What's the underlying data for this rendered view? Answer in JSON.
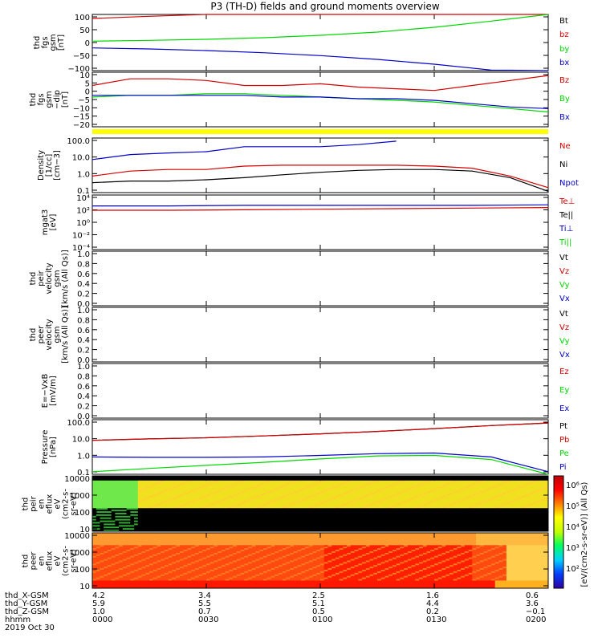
{
  "title": "P3 (TH-D) fields and ground moments overview",
  "colors": {
    "red": "#d40000",
    "green": "#00d800",
    "blue": "#0000c8",
    "black": "#000000",
    "yellow": "#ffff00"
  },
  "panels": [
    {
      "id": "fgs",
      "ylabel": "thd\nfgs\ngsm\n[nT]",
      "yticks": [
        "100",
        "50",
        "0",
        "−50",
        "−100"
      ],
      "ylim": [
        -100,
        110
      ],
      "legend": [
        {
          "text": "Bt",
          "color": "#000000"
        },
        {
          "text": "bz",
          "color": "#d40000"
        },
        {
          "text": "by",
          "color": "#00d800"
        },
        {
          "text": "bx",
          "color": "#0000c8"
        }
      ]
    },
    {
      "id": "fgs2",
      "ylabel": "thd\nfgs\ngsm\n−dip\n[nT]",
      "yticks": [
        "10",
        "5",
        "0",
        "−5",
        "−10",
        "−15",
        "−20"
      ],
      "ylim": [
        -22,
        11
      ],
      "legend": [
        {
          "text": "Bz",
          "color": "#d40000"
        },
        {
          "text": "By",
          "color": "#00d800"
        },
        {
          "text": "Bx",
          "color": "#0000c8"
        }
      ]
    },
    {
      "id": "density",
      "ylabel": "Density\n[1/cc]\n[cm−3]",
      "yticks": [
        "100.0",
        "10.0",
        "1.0",
        "0.1"
      ],
      "ylim": [
        0.1,
        200
      ],
      "legend": [
        {
          "text": "Ne",
          "color": "#d40000"
        },
        {
          "text": "Ni",
          "color": "#000000"
        },
        {
          "text": "Npot",
          "color": "#0000c8"
        }
      ]
    },
    {
      "id": "temp",
      "ylabel": "mgat3\n[eV]",
      "yticks": [
        "10^4",
        "10^2",
        "10^0",
        "10^-2",
        "10^-4"
      ],
      "ylim": [
        -5,
        5
      ],
      "legend": [
        {
          "text": "Te⊥",
          "color": "#d40000"
        },
        {
          "text": "Te||",
          "color": "#000000"
        },
        {
          "text": "Ti⊥",
          "color": "#0000c8"
        },
        {
          "text": "Ti||",
          "color": "#00d800"
        }
      ]
    },
    {
      "id": "peir_v",
      "ylabel": "thd\npeir\nvelocity\ngsm\n[km/s (All Qs)]",
      "yticks": [
        "1.0",
        "0.8",
        "0.6",
        "0.4",
        "0.2",
        "0.0"
      ],
      "ylim": [
        0,
        1
      ],
      "legend": [
        {
          "text": "Vt",
          "color": "#000000"
        },
        {
          "text": "Vz",
          "color": "#d40000"
        },
        {
          "text": "Vy",
          "color": "#00d800"
        },
        {
          "text": "Vx",
          "color": "#0000c8"
        }
      ]
    },
    {
      "id": "peer_v",
      "ylabel": "thd\npeer\nvelocity\ngsm\n[km/s (All Qs)]",
      "yticks": [
        "1.0",
        "0.8",
        "0.6",
        "0.4",
        "0.2",
        "0.0"
      ],
      "ylim": [
        0,
        1
      ],
      "legend": [
        {
          "text": "Vt",
          "color": "#000000"
        },
        {
          "text": "Vz",
          "color": "#d40000"
        },
        {
          "text": "Vy",
          "color": "#00d800"
        },
        {
          "text": "Vx",
          "color": "#0000c8"
        }
      ]
    },
    {
      "id": "efield",
      "ylabel": "E=−VxB\n[mV/m]",
      "yticks": [
        "1.0",
        "0.8",
        "0.6",
        "0.4",
        "0.2",
        "0.0"
      ],
      "ylim": [
        0,
        1
      ],
      "legend": [
        {
          "text": "Ez",
          "color": "#d40000"
        },
        {
          "text": "Ey",
          "color": "#00d800"
        },
        {
          "text": "Ex",
          "color": "#0000c8"
        }
      ]
    },
    {
      "id": "pressure",
      "ylabel": "Pressure\n[nPa]",
      "yticks": [
        "100.0",
        "10.0",
        "1.0",
        "0.1"
      ],
      "ylim": [
        0.02,
        100
      ],
      "legend": [
        {
          "text": "Pt",
          "color": "#000000"
        },
        {
          "text": "Pb",
          "color": "#d40000"
        },
        {
          "text": "Pe",
          "color": "#00d800"
        },
        {
          "text": "Pi",
          "color": "#0000c8"
        }
      ]
    },
    {
      "id": "peir_en",
      "ylabel": "thd\npeir\nen\neflux\neV\n(cm2-s-\nsr-eV)",
      "yticks": [
        "10000",
        "1000",
        "100",
        "10"
      ],
      "legend": []
    },
    {
      "id": "peer_en",
      "ylabel": "thd\npeer\nen\neflux\neV\n(cm2-s-\nsr-eV)",
      "yticks": [
        "10000",
        "1000",
        "100",
        "10"
      ],
      "legend": []
    }
  ],
  "colorbar": {
    "label": "[eV/(cm2-s-sr-eV)] (All Qs)",
    "ticks": [
      "10^6",
      "10^5",
      "10^4",
      "10^3",
      "10^2"
    ]
  },
  "xaxis": {
    "rows": [
      {
        "label": "thd_X-GSM",
        "values": [
          "4.2",
          "3.4",
          "2.5",
          "1.6",
          "0.6"
        ]
      },
      {
        "label": "thd_Y-GSM",
        "values": [
          "5.9",
          "5.5",
          "5.1",
          "4.4",
          "3.6"
        ]
      },
      {
        "label": "thd_Z-GSM",
        "values": [
          "1.0",
          "0.7",
          "0.5",
          "0.2",
          "−0.1"
        ]
      },
      {
        "label": "hhmm",
        "values": [
          "0000",
          "0030",
          "0100",
          "0130",
          "0200"
        ]
      }
    ],
    "date": "2019 Oct 30"
  },
  "chart_data": [
    {
      "type": "line",
      "panel": "fgs",
      "x": [
        0,
        15,
        30,
        45,
        60,
        75,
        90,
        105,
        120
      ],
      "series": [
        {
          "name": "bz",
          "values": [
            95,
            103,
            112,
            120,
            128,
            136,
            144,
            152,
            160
          ]
        },
        {
          "name": "by",
          "values": [
            10,
            13,
            17,
            23,
            32,
            44,
            62,
            85,
            112
          ]
        },
        {
          "name": "bx",
          "values": [
            -15,
            -19,
            -25,
            -33,
            -44,
            -58,
            -76,
            -98,
            -124
          ]
        }
      ]
    },
    {
      "type": "line",
      "panel": "fgs2",
      "x": [
        0,
        10,
        20,
        30,
        40,
        50,
        60,
        70,
        80,
        90,
        100,
        110,
        120
      ],
      "series": [
        {
          "name": "Bz",
          "values": [
            3,
            7,
            7,
            6,
            3,
            3,
            4,
            2,
            1,
            0,
            3,
            6,
            9
          ]
        },
        {
          "name": "By",
          "values": [
            -4,
            -3,
            -3,
            -2,
            -2,
            -3,
            -4,
            -5,
            -6,
            -7,
            -9,
            -11,
            -13
          ]
        },
        {
          "name": "Bx",
          "values": [
            -3,
            -3,
            -3,
            -3,
            -3,
            -4,
            -4,
            -5,
            -5,
            -6,
            -8,
            -10,
            -11
          ]
        }
      ]
    },
    {
      "type": "line",
      "panel": "density",
      "x": [
        0,
        10,
        20,
        30,
        40,
        50,
        60,
        70,
        80,
        90,
        100,
        110,
        120
      ],
      "series": [
        {
          "name": "Ne",
          "values": [
            1.0,
            2.0,
            2.5,
            2.5,
            4.0,
            4.5,
            4.5,
            4.5,
            4.5,
            4.0,
            3.0,
            1.0,
            0.2
          ]
        },
        {
          "name": "Ni",
          "values": [
            0.4,
            0.5,
            0.5,
            0.6,
            0.8,
            1.2,
            1.7,
            2.2,
            2.5,
            2.5,
            2.0,
            0.8,
            0.12
          ]
        },
        {
          "name": "Npot",
          "values": [
            10,
            20,
            25,
            30,
            60,
            60,
            60,
            80,
            130,
            null,
            null,
            null,
            null
          ]
        }
      ]
    },
    {
      "type": "line",
      "panel": "temp",
      "x": [
        0,
        20,
        40,
        60,
        80,
        100,
        120
      ],
      "series": [
        {
          "name": "Ti⊥",
          "values": [
            3.0,
            3.0,
            3.1,
            3.1,
            3.1,
            3.1,
            3.2
          ]
        },
        {
          "name": "Te⊥",
          "values": [
            2.2,
            2.2,
            2.3,
            2.4,
            2.5,
            2.6,
            2.7
          ]
        }
      ]
    },
    {
      "type": "line",
      "panel": "pressure",
      "x": [
        0,
        15,
        30,
        45,
        60,
        75,
        90,
        105,
        120
      ],
      "series": [
        {
          "name": "Pt",
          "values": [
            4,
            5,
            6,
            8,
            11,
            16,
            25,
            40,
            60
          ]
        },
        {
          "name": "Pb",
          "values": [
            4,
            5,
            6,
            8,
            11,
            16,
            25,
            40,
            60
          ]
        },
        {
          "name": "Pi",
          "values": [
            0.3,
            0.28,
            0.28,
            0.3,
            0.38,
            0.5,
            0.55,
            0.3,
            0.03
          ]
        },
        {
          "name": "Pe",
          "values": [
            0.03,
            0.05,
            0.08,
            0.13,
            0.22,
            0.35,
            0.38,
            0.2,
            0.02
          ]
        }
      ]
    }
  ]
}
